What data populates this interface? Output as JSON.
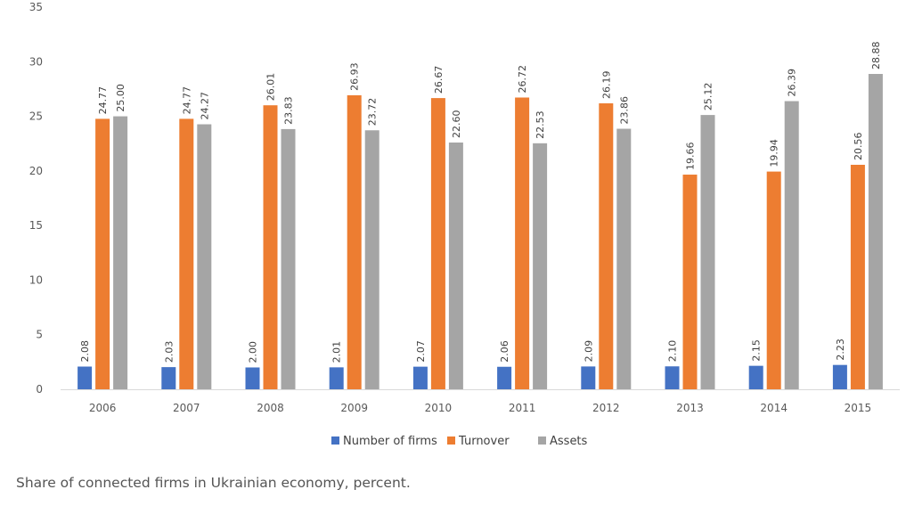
{
  "chart_data": {
    "type": "bar",
    "categories": [
      "2006",
      "2007",
      "2008",
      "2009",
      "2010",
      "2011",
      "2012",
      "2013",
      "2014",
      "2015"
    ],
    "series": [
      {
        "name": "Number of firms",
        "color": "#4472C4",
        "values": [
          2.08,
          2.03,
          2.0,
          2.01,
          2.07,
          2.06,
          2.09,
          2.1,
          2.15,
          2.23
        ],
        "labels": [
          "2.08",
          "2.03",
          "2.00",
          "2.01",
          "2.07",
          "2.06",
          "2.09",
          "2.10",
          "2.15",
          "2.23"
        ]
      },
      {
        "name": "Turnover",
        "color": "#ED7D31",
        "values": [
          24.77,
          24.77,
          26.01,
          26.93,
          26.67,
          26.72,
          26.19,
          19.66,
          19.94,
          20.56
        ],
        "labels": [
          "24.77",
          "24.77",
          "26.01",
          "26.93",
          "26.67",
          "26.72",
          "26.19",
          "19.66",
          "19.94",
          "20.56"
        ]
      },
      {
        "name": "Assets",
        "color": "#A5A5A5",
        "values": [
          25.0,
          24.27,
          23.83,
          23.72,
          22.6,
          22.53,
          23.86,
          25.12,
          26.39,
          28.88
        ],
        "labels": [
          "25.00",
          "24.27",
          "23.83",
          "23.72",
          "22.60",
          "22.53",
          "23.86",
          "25.12",
          "26.39",
          "28.88"
        ]
      }
    ],
    "yticks": [
      "0",
      "5",
      "10",
      "15",
      "20",
      "25",
      "30",
      "35"
    ],
    "ylim": [
      0,
      35
    ],
    "legend_position": "bottom",
    "grid": false,
    "title": "",
    "xlabel": "",
    "ylabel": ""
  },
  "caption": "Share of connected firms in Ukrainian economy, percent."
}
